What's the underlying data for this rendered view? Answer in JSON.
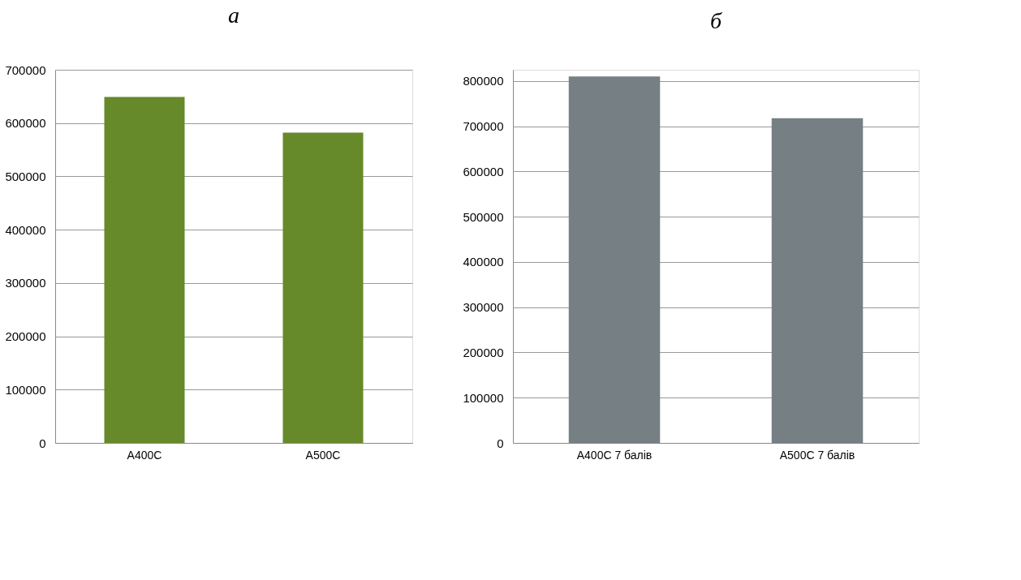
{
  "chart_data": [
    {
      "type": "bar",
      "title": "а",
      "categories": [
        "A400C",
        "A500C"
      ],
      "values": [
        649000,
        582000
      ],
      "color": "#66892a",
      "ylim": [
        0,
        700000
      ],
      "yticks": [
        0,
        100000,
        200000,
        300000,
        400000,
        500000,
        600000,
        700000
      ],
      "grid": "y"
    },
    {
      "type": "bar",
      "title": "б",
      "categories": [
        "A400C 7 балів",
        "A500C 7 балів"
      ],
      "values": [
        810000,
        718000
      ],
      "color": "#757f84",
      "ylim": [
        0,
        825000
      ],
      "yticks": [
        0,
        100000,
        200000,
        300000,
        400000,
        500000,
        600000,
        700000,
        800000
      ],
      "grid": "y"
    }
  ]
}
